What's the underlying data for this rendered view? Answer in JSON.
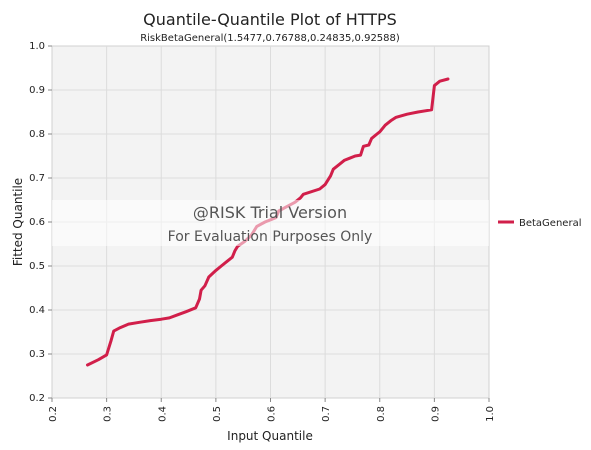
{
  "chart_data": {
    "type": "line",
    "title": "Quantile-Quantile Plot of HTTPS",
    "subtitle": "RiskBetaGeneral(1.5477,0.76788,0.24835,0.92588)",
    "xlabel": "Input Quantile",
    "ylabel": "Fitted Quantile",
    "xlim": [
      0.2,
      1.0
    ],
    "ylim": [
      0.2,
      1.0
    ],
    "x_ticks": [
      "0.2",
      "0.3",
      "0.4",
      "0.5",
      "0.6",
      "0.7",
      "0.8",
      "0.9",
      "1.0"
    ],
    "y_ticks": [
      "0.2",
      "0.3",
      "0.4",
      "0.5",
      "0.6",
      "0.7",
      "0.8",
      "0.9",
      "1.0"
    ],
    "grid": true,
    "legend_position": "right",
    "series": [
      {
        "name": "BetaGeneral",
        "color": "#d11f4a",
        "points": [
          [
            0.265,
            0.275
          ],
          [
            0.285,
            0.287
          ],
          [
            0.3,
            0.298
          ],
          [
            0.308,
            0.33
          ],
          [
            0.313,
            0.352
          ],
          [
            0.325,
            0.36
          ],
          [
            0.34,
            0.368
          ],
          [
            0.36,
            0.372
          ],
          [
            0.38,
            0.376
          ],
          [
            0.4,
            0.379
          ],
          [
            0.415,
            0.382
          ],
          [
            0.43,
            0.389
          ],
          [
            0.445,
            0.396
          ],
          [
            0.463,
            0.405
          ],
          [
            0.47,
            0.425
          ],
          [
            0.473,
            0.445
          ],
          [
            0.48,
            0.455
          ],
          [
            0.487,
            0.475
          ],
          [
            0.5,
            0.49
          ],
          [
            0.51,
            0.5
          ],
          [
            0.52,
            0.51
          ],
          [
            0.53,
            0.52
          ],
          [
            0.535,
            0.535
          ],
          [
            0.54,
            0.545
          ],
          [
            0.552,
            0.555
          ],
          [
            0.565,
            0.57
          ],
          [
            0.575,
            0.59
          ],
          [
            0.59,
            0.6
          ],
          [
            0.6,
            0.605
          ],
          [
            0.61,
            0.61
          ],
          [
            0.615,
            0.625
          ],
          [
            0.63,
            0.635
          ],
          [
            0.645,
            0.645
          ],
          [
            0.655,
            0.655
          ],
          [
            0.66,
            0.663
          ],
          [
            0.69,
            0.675
          ],
          [
            0.7,
            0.685
          ],
          [
            0.71,
            0.705
          ],
          [
            0.715,
            0.72
          ],
          [
            0.725,
            0.73
          ],
          [
            0.735,
            0.74
          ],
          [
            0.745,
            0.745
          ],
          [
            0.755,
            0.75
          ],
          [
            0.765,
            0.752
          ],
          [
            0.77,
            0.772
          ],
          [
            0.78,
            0.775
          ],
          [
            0.785,
            0.79
          ],
          [
            0.795,
            0.8
          ],
          [
            0.8,
            0.805
          ],
          [
            0.81,
            0.82
          ],
          [
            0.82,
            0.83
          ],
          [
            0.83,
            0.838
          ],
          [
            0.85,
            0.845
          ],
          [
            0.87,
            0.85
          ],
          [
            0.895,
            0.855
          ],
          [
            0.9,
            0.91
          ],
          [
            0.91,
            0.92
          ],
          [
            0.925,
            0.925
          ]
        ]
      }
    ],
    "watermark": {
      "line1": "@RISK Trial Version",
      "line2": "For Evaluation Purposes Only"
    }
  }
}
